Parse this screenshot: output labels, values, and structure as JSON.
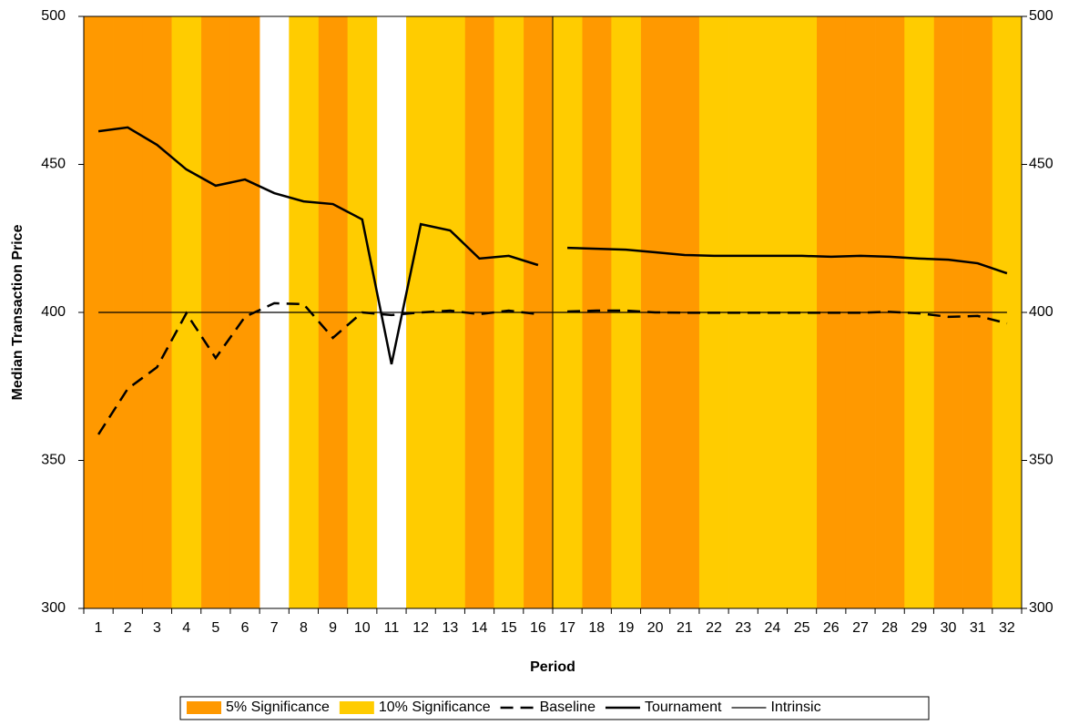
{
  "chart_data": {
    "type": "line",
    "x_label": "Period",
    "y_label": "Median Transaction Price",
    "categories": [
      "1",
      "2",
      "3",
      "4",
      "5",
      "6",
      "7",
      "8",
      "9",
      "10",
      "11",
      "12",
      "13",
      "14",
      "15",
      "16",
      "17",
      "18",
      "19",
      "20",
      "21",
      "22",
      "23",
      "24",
      "25",
      "26",
      "27",
      "28",
      "29",
      "30",
      "31",
      "32"
    ],
    "ylim": [
      300,
      500
    ],
    "yticks": [
      300,
      350,
      400,
      450,
      500
    ],
    "y2lim": [
      300,
      500
    ],
    "y2ticks": [
      300,
      350,
      400,
      450,
      500
    ],
    "series": [
      {
        "name": "5% Significance",
        "type": "bar",
        "color": "#ff9900",
        "values": [
          500,
          500,
          500,
          null,
          500,
          500,
          null,
          null,
          500,
          null,
          null,
          null,
          null,
          500,
          null,
          500,
          null,
          500,
          null,
          500,
          500,
          null,
          null,
          null,
          null,
          500,
          500,
          500,
          null,
          500,
          500,
          null
        ]
      },
      {
        "name": "10% Significance",
        "type": "bar",
        "color": "#ffcc00",
        "values": [
          null,
          null,
          null,
          500,
          null,
          null,
          null,
          500,
          null,
          500,
          null,
          500,
          500,
          null,
          500,
          null,
          500,
          null,
          500,
          null,
          null,
          500,
          500,
          500,
          500,
          null,
          null,
          null,
          500,
          null,
          null,
          500
        ]
      },
      {
        "name": "Baseline",
        "type": "line",
        "color": "#000000",
        "dash": "14,8",
        "width": 2.5,
        "values": [
          358.8,
          374.2,
          381.5,
          399.7,
          384.6,
          398.5,
          403.1,
          402.8,
          391.4,
          400,
          399.1,
          400,
          400.6,
          399.4,
          400.6,
          399.4,
          400.3,
          400.6,
          400.6,
          400,
          399.9,
          399.9,
          399.9,
          399.9,
          399.9,
          399.9,
          399.9,
          400.2,
          399.7,
          398.5,
          398.8,
          396.3
        ]
      },
      {
        "name": "Tournament",
        "type": "line",
        "color": "#000000",
        "width": 2.5,
        "values": [
          461.2,
          462.5,
          456.6,
          448.3,
          442.8,
          444.9,
          440.3,
          437.5,
          436.6,
          431.4,
          382.5,
          429.8,
          427.7,
          418.2,
          419.1,
          416,
          421.8,
          421.5,
          421.2,
          420.3,
          419.4,
          419.1,
          419.1,
          419.1,
          419.1,
          418.8,
          419.1,
          418.8,
          418.2,
          417.8,
          416.6,
          413.2
        ]
      },
      {
        "name": "Intrinsic",
        "type": "line",
        "color": "#000000",
        "width": 1.2,
        "values": [
          400,
          400,
          400,
          400,
          400,
          400,
          400,
          400,
          400,
          400,
          400,
          400,
          400,
          400,
          400,
          400,
          400,
          400,
          400,
          400,
          400,
          400,
          400,
          400,
          400,
          400,
          400,
          400,
          400,
          400,
          400,
          400
        ]
      }
    ]
  }
}
